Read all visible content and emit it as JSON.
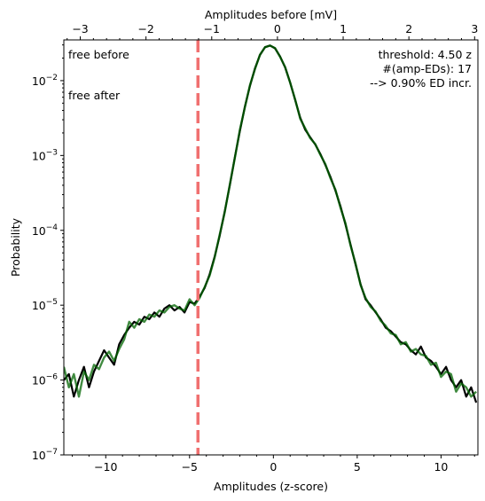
{
  "chart_data": {
    "type": "line",
    "xlabel": "Amplitudes (z-score)",
    "ylabel": "Probability",
    "top_xlabel": "Amplitudes before [mV]",
    "xlim": [
      -12.5,
      12.2
    ],
    "top_xlim": [
      -3.25,
      3.05
    ],
    "ylim": [
      1e-07,
      0.035
    ],
    "yscale": "log",
    "x_ticks": [
      -10,
      -5,
      0,
      5,
      10
    ],
    "x_tick_labels": [
      "−10",
      "−5",
      "0",
      "5",
      "10"
    ],
    "top_x_ticks": [
      -3,
      -2,
      -1,
      0,
      1,
      2,
      3
    ],
    "top_x_tick_labels": [
      "−3",
      "−2",
      "−1",
      "0",
      "1",
      "2",
      "3"
    ],
    "y_ticks": [
      1e-07,
      1e-06,
      1e-05,
      0.0001,
      0.001,
      0.01
    ],
    "y_tick_exponents": [
      "−7",
      "−6",
      "−5",
      "−4",
      "−3",
      "−2"
    ],
    "threshold_line": {
      "x": -4.5,
      "color": "#f07070"
    },
    "legend": [
      {
        "label": "free before",
        "color": "#000000"
      },
      {
        "label": "free after",
        "color": "#008000"
      }
    ],
    "annotation": {
      "lines": [
        "threshold: 4.50 z",
        "#(amp-EDs): 17",
        "--> 0.90% ED incr."
      ],
      "color": "#ff0000"
    },
    "series": [
      {
        "name": "free before",
        "color": "#000000",
        "x": [
          -12.5,
          -12.2,
          -11.9,
          -11.6,
          -11.3,
          -11.0,
          -10.7,
          -10.4,
          -10.1,
          -9.8,
          -9.5,
          -9.2,
          -8.9,
          -8.6,
          -8.3,
          -8.0,
          -7.7,
          -7.4,
          -7.1,
          -6.8,
          -6.5,
          -6.2,
          -5.9,
          -5.6,
          -5.3,
          -5.0,
          -4.7,
          -4.4,
          -4.1,
          -3.8,
          -3.5,
          -3.2,
          -2.9,
          -2.6,
          -2.3,
          -2.0,
          -1.7,
          -1.4,
          -1.1,
          -0.8,
          -0.5,
          -0.2,
          0.1,
          0.4,
          0.7,
          1.0,
          1.3,
          1.6,
          1.9,
          2.2,
          2.5,
          2.8,
          3.1,
          3.4,
          3.7,
          4.0,
          4.3,
          4.6,
          4.9,
          5.2,
          5.5,
          5.8,
          6.1,
          6.4,
          6.7,
          7.0,
          7.3,
          7.6,
          7.9,
          8.2,
          8.5,
          8.8,
          9.1,
          9.4,
          9.7,
          10.0,
          10.3,
          10.6,
          10.9,
          11.2,
          11.5,
          11.8,
          12.1
        ],
        "y": [
          1e-06,
          1.2e-06,
          6e-07,
          1e-06,
          1.5e-06,
          8e-07,
          1.3e-06,
          1.8e-06,
          2.5e-06,
          2e-06,
          1.6e-06,
          3e-06,
          4e-06,
          5e-06,
          6e-06,
          5.5e-06,
          7e-06,
          6.5e-06,
          8e-06,
          7e-06,
          9e-06,
          1e-05,
          8.5e-06,
          9.5e-06,
          8e-06,
          1.1e-05,
          1.05e-05,
          1.3e-05,
          1.7e-05,
          2.6e-05,
          4.5e-05,
          8.5e-05,
          0.00018,
          0.0004,
          0.00095,
          0.0021,
          0.0045,
          0.0085,
          0.0145,
          0.022,
          0.028,
          0.0295,
          0.027,
          0.021,
          0.015,
          0.0095,
          0.0055,
          0.0032,
          0.0022,
          0.00175,
          0.0014,
          0.00105,
          0.00075,
          0.00052,
          0.00034,
          0.00021,
          0.00012,
          6.5e-05,
          3.5e-05,
          1.9e-05,
          1.2e-05,
          1e-05,
          8e-06,
          6.5e-06,
          5e-06,
          4.5e-06,
          3.8e-06,
          3.2e-06,
          3e-06,
          2.5e-06,
          2.2e-06,
          2.8e-06,
          2e-06,
          1.8e-06,
          1.5e-06,
          1.2e-06,
          1.5e-06,
          1e-06,
          8e-07,
          1e-06,
          6e-07,
          8e-07,
          5e-07
        ]
      },
      {
        "name": "free after",
        "color": "#006400",
        "x": [
          -12.5,
          -12.2,
          -11.9,
          -11.6,
          -11.3,
          -11.0,
          -10.7,
          -10.4,
          -10.1,
          -9.8,
          -9.5,
          -9.2,
          -8.9,
          -8.6,
          -8.3,
          -8.0,
          -7.7,
          -7.4,
          -7.1,
          -6.8,
          -6.5,
          -6.2,
          -5.9,
          -5.6,
          -5.3,
          -5.0,
          -4.7,
          -4.4,
          -4.1,
          -3.8,
          -3.5,
          -3.2,
          -2.9,
          -2.6,
          -2.3,
          -2.0,
          -1.7,
          -1.4,
          -1.1,
          -0.8,
          -0.5,
          -0.2,
          0.1,
          0.4,
          0.7,
          1.0,
          1.3,
          1.6,
          1.9,
          2.2,
          2.5,
          2.8,
          3.1,
          3.4,
          3.7,
          4.0,
          4.3,
          4.6,
          4.9,
          5.2,
          5.5,
          5.8,
          6.1,
          6.4,
          6.7,
          7.0,
          7.3,
          7.6,
          7.9,
          8.2,
          8.5,
          8.8,
          9.1,
          9.4,
          9.7,
          10.0,
          10.3,
          10.6,
          10.9,
          11.2,
          11.5,
          11.8,
          12.1
        ],
        "y": [
          1.5e-06,
          8e-07,
          1.2e-06,
          6e-07,
          1.3e-06,
          1e-06,
          1.6e-06,
          1.4e-06,
          2e-06,
          2.4e-06,
          1.8e-06,
          2.6e-06,
          3.5e-06,
          6e-06,
          5e-06,
          6.5e-06,
          6e-06,
          7.5e-06,
          7e-06,
          8.5e-06,
          8e-06,
          9.5e-06,
          1e-05,
          9e-06,
          8.5e-06,
          1.2e-05,
          1e-05,
          1.25e-05,
          1.75e-05,
          2.5e-05,
          4.4e-05,
          8.8e-05,
          0.000175,
          0.00041,
          0.00093,
          0.0022,
          0.0044,
          0.0087,
          0.0142,
          0.0222,
          0.0279,
          0.0294,
          0.0272,
          0.0208,
          0.0152,
          0.0094,
          0.0056,
          0.0031,
          0.0023,
          0.0017,
          0.00142,
          0.00102,
          0.00077,
          0.0005,
          0.00035,
          0.0002,
          0.000125,
          6.3e-05,
          3.6e-05,
          1.85e-05,
          1.25e-05,
          9.5e-06,
          8.2e-06,
          6.2e-06,
          5.3e-06,
          4.2e-06,
          4e-06,
          3e-06,
          3.2e-06,
          2.4e-06,
          2.6e-06,
          2.2e-06,
          2.1e-06,
          1.6e-06,
          1.7e-06,
          1.1e-06,
          1.3e-06,
          1.2e-06,
          7e-07,
          9e-07,
          8e-07,
          6e-07,
          7e-07
        ]
      }
    ]
  }
}
